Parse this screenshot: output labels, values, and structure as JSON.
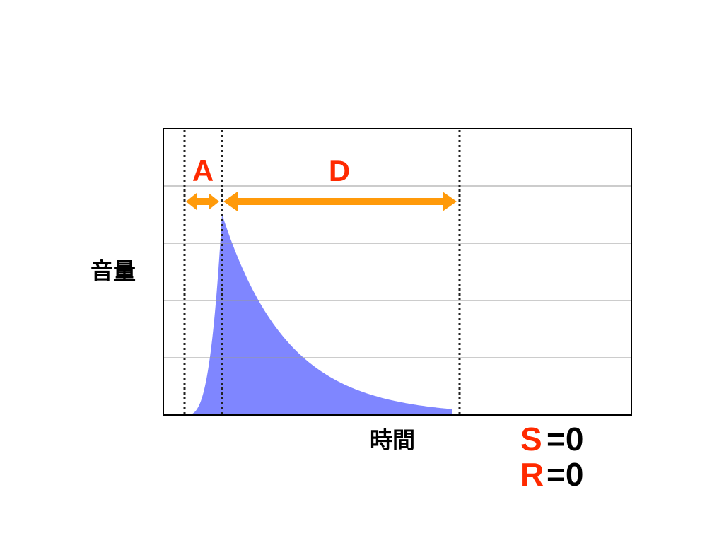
{
  "labels": {
    "attack": "A",
    "decay": "D",
    "y_axis": "音量",
    "x_axis": "時間",
    "sustain": {
      "letter": "S",
      "value": "=0"
    },
    "release": {
      "letter": "R",
      "value": "=0"
    }
  }
}
